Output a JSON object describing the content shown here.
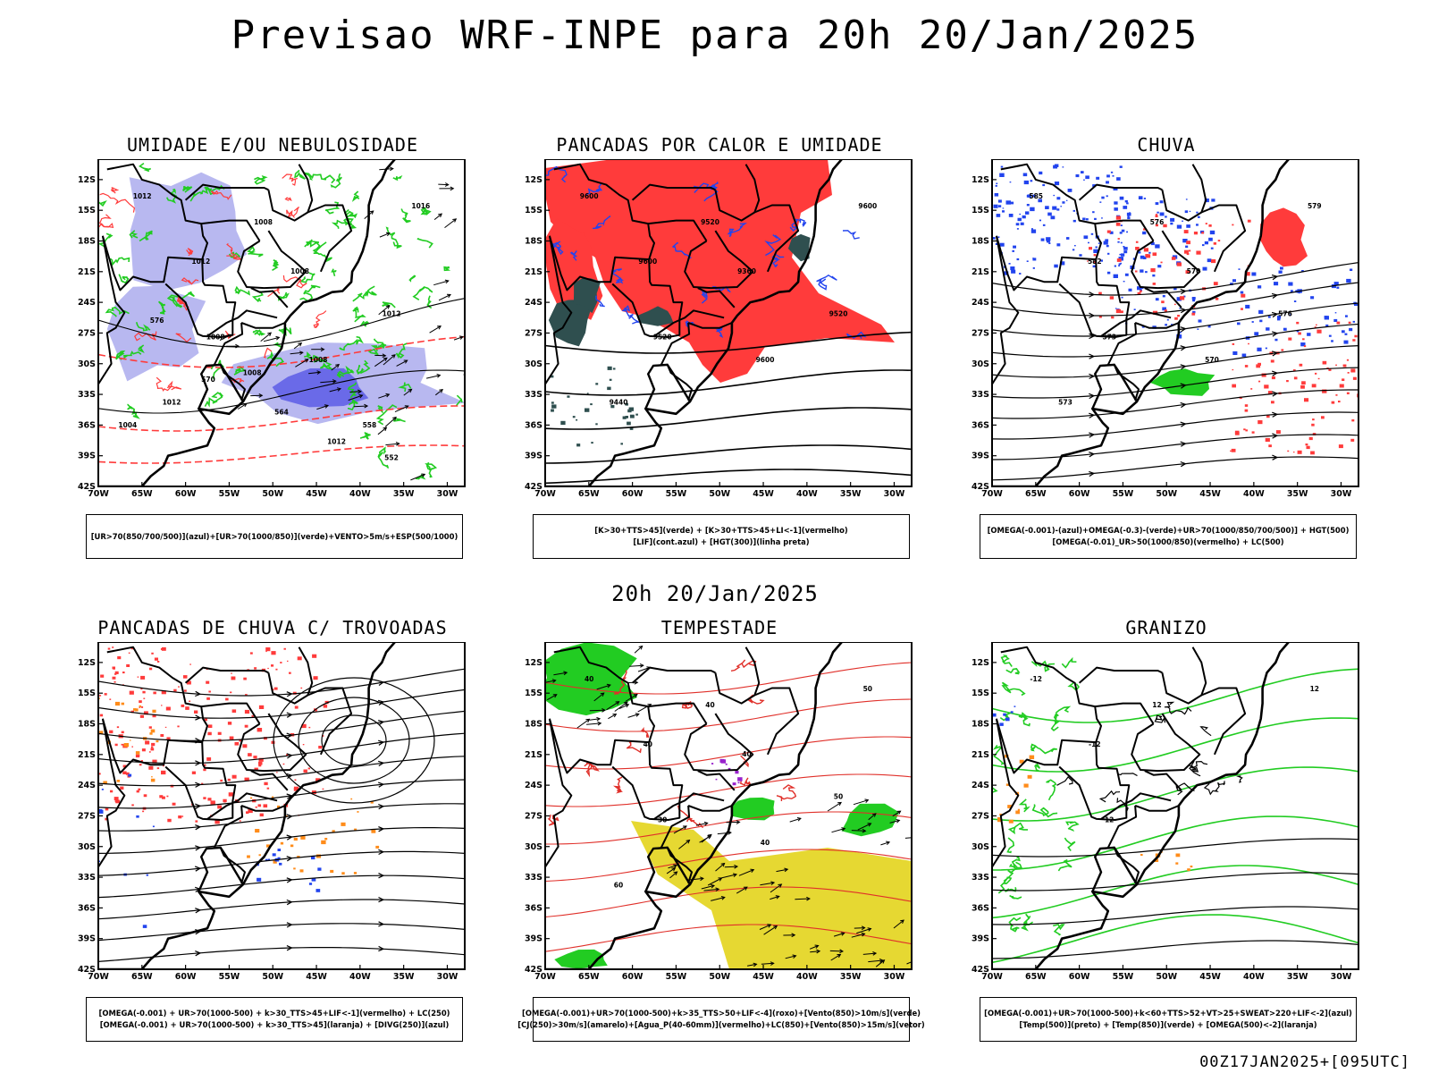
{
  "title": "Previsao WRF-INPE  para 20h 20/Jan/2025",
  "mid_title": "20h 20/Jan/2025",
  "footer": "00Z17JAN2025+[095UTC]",
  "axes": {
    "lat_labels": [
      "12S",
      "15S",
      "18S",
      "21S",
      "24S",
      "27S",
      "30S",
      "33S",
      "36S",
      "39S",
      "42S"
    ],
    "lon_labels": [
      "70W",
      "65W",
      "60W",
      "55W",
      "50W",
      "45W",
      "40W",
      "35W",
      "30W"
    ]
  },
  "colors": {
    "green": "#22cc22",
    "red": "#ff3b3b",
    "blue": "#2244ee",
    "lavender": "#b8b8f0",
    "dark_teal": "#2f4f4f",
    "yellow": "#e6d832",
    "orange": "#ff8c1a",
    "purple": "#9922cc"
  },
  "panels": [
    {
      "id": "umidade",
      "title": "UMIDADE E/OU NEBULOSIDADE",
      "legend": [
        "[UR>70(850/700/500)](azul)+[UR>70(1000/850)](verde)+VENTO>5m/s+ESP(500/1000)"
      ],
      "contour_labels": [
        "1012",
        "1012",
        "1016",
        "1008",
        "1008",
        "1008",
        "1012",
        "1012",
        "1008",
        "1004",
        "1008",
        "1012",
        "576",
        "570",
        "564",
        "558",
        "552"
      ]
    },
    {
      "id": "pancadas-calor",
      "title": "PANCADAS POR CALOR E UMIDADE",
      "legend": [
        "[K>30+TTS>45](verde) + [K>30+TTS>45+LI<-1](vermelho)",
        "[LIF](cont.azul) + [HGT(300)](linha preta)"
      ],
      "contour_labels": [
        "9600",
        "9600",
        "9600",
        "9520",
        "9520",
        "9600",
        "9520",
        "9440",
        "9360"
      ]
    },
    {
      "id": "chuva",
      "title": "CHUVA",
      "legend": [
        "[OMEGA(-0.001)-(azul)+OMEGA(-0.3)-(verde)+UR>70(1000/850/700/500)] + HGT(500)",
        "[OMEGA(-0.01)_UR>50(1000/850)(vermelho) + LC(500)"
      ],
      "contour_labels": [
        "585",
        "582",
        "579",
        "576",
        "573",
        "570",
        "576",
        "573",
        "570"
      ]
    },
    {
      "id": "pancadas-trovoadas",
      "title": "PANCADAS DE CHUVA C/ TROVOADAS",
      "legend": [
        "[OMEGA(-0.001) + UR>70(1000-500) + k>30_TTS>45+LIF<-1](vermelho) + LC(250)",
        "[OMEGA(-0.001) + UR>70(1000-500) + k>30_TTS>45](laranja) + [DIVG(250)](azul)"
      ],
      "contour_labels": []
    },
    {
      "id": "tempestade",
      "title": "TEMPESTADE",
      "legend": [
        "[OMEGA(-0.001)+UR>70(1000-500)+k>35_TTS>50+LIF<-4](roxo)+[Vento(850)>10m/s](verde)",
        "[CJ(250)>30m/s](amarelo)+[Agua_P(40-60mm)](vermelho)+LC(850)+[Vento(850)>15m/s](vetor)"
      ],
      "contour_labels": [
        "40",
        "40",
        "50",
        "40",
        "30",
        "40",
        "50",
        "60",
        "40"
      ]
    },
    {
      "id": "granizo",
      "title": "GRANIZO",
      "legend": [
        "[OMEGA(-0.001)+UR>70(1000-500)+k<60+TTS>52+VT>25+SWEAT>220+LIF<-2](azul)",
        "[Temp(500)](preto) + [Temp(850)](verde) + [OMEGA(500)<-2](laranja)"
      ],
      "contour_labels": [
        "-12",
        "-12",
        "12",
        "12",
        "12"
      ]
    }
  ]
}
